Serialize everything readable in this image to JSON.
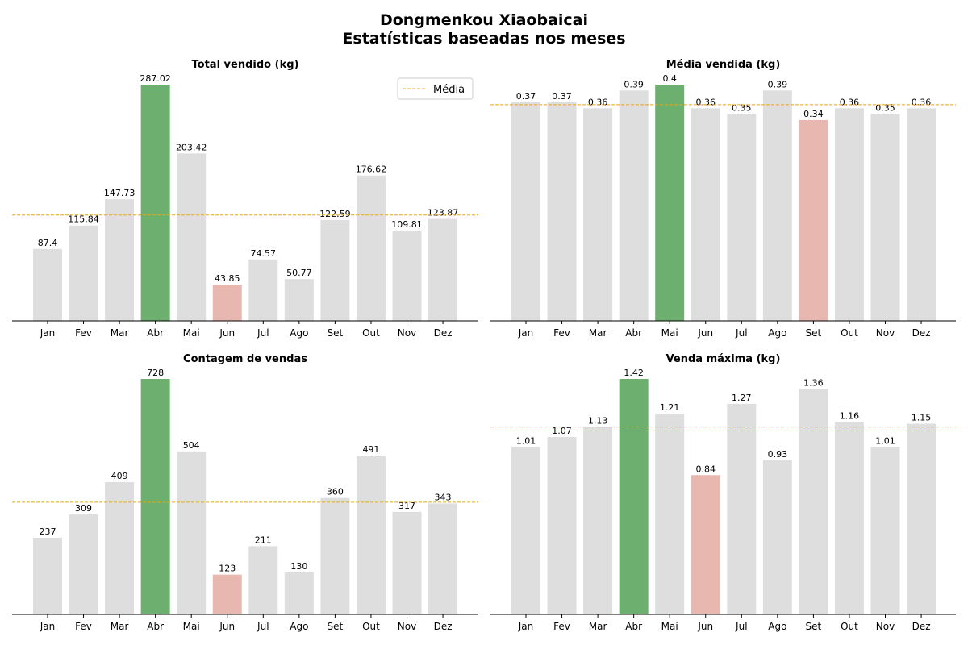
{
  "figure": {
    "title_line1": "Dongmenkou Xiaobaicai",
    "title_line2": "Estatísticas baseadas nos meses",
    "legend_label": "Média"
  },
  "colors": {
    "default_bar": "#dedede",
    "max_bar": "#6daf6e",
    "min_bar": "#e8b8b0",
    "mean_line": "#e6a817"
  },
  "chart_data": [
    {
      "type": "bar",
      "title": "Total vendido (kg)",
      "categories": [
        "Jan",
        "Fev",
        "Mar",
        "Abr",
        "Mai",
        "Jun",
        "Jul",
        "Ago",
        "Set",
        "Out",
        "Nov",
        "Dez"
      ],
      "values": [
        87.4,
        115.84,
        147.73,
        287.02,
        203.42,
        43.85,
        74.57,
        50.77,
        122.59,
        176.62,
        109.81,
        123.87
      ],
      "value_labels": [
        "87.4",
        "115.84",
        "147.73",
        "287.02",
        "203.42",
        "43.85",
        "74.57",
        "50.77",
        "122.59",
        "176.62",
        "109.81",
        "123.87"
      ],
      "mean": 128.6,
      "ylim": [
        0,
        287.02
      ],
      "legend": "top-right",
      "grid": false
    },
    {
      "type": "bar",
      "title": "Média vendida (kg)",
      "categories": [
        "Jan",
        "Fev",
        "Mar",
        "Abr",
        "Mai",
        "Jun",
        "Jul",
        "Ago",
        "Set",
        "Out",
        "Nov",
        "Dez"
      ],
      "values": [
        0.37,
        0.37,
        0.36,
        0.39,
        0.4,
        0.36,
        0.35,
        0.39,
        0.34,
        0.36,
        0.35,
        0.36
      ],
      "value_labels": [
        "0.37",
        "0.37",
        "0.36",
        "0.39",
        "0.4",
        "0.36",
        "0.35",
        "0.39",
        "0.34",
        "0.36",
        "0.35",
        "0.36"
      ],
      "mean": 0.366,
      "ylim": [
        0,
        0.4
      ],
      "grid": false
    },
    {
      "type": "bar",
      "title": "Contagem de vendas",
      "categories": [
        "Jan",
        "Fev",
        "Mar",
        "Abr",
        "Mai",
        "Jun",
        "Jul",
        "Ago",
        "Set",
        "Out",
        "Nov",
        "Dez"
      ],
      "values": [
        237,
        309,
        409,
        728,
        504,
        123,
        211,
        130,
        360,
        491,
        317,
        343
      ],
      "value_labels": [
        "237",
        "309",
        "409",
        "728",
        "504",
        "123",
        "211",
        "130",
        "360",
        "491",
        "317",
        "343"
      ],
      "mean": 347,
      "ylim": [
        0,
        728
      ],
      "grid": false
    },
    {
      "type": "bar",
      "title": "Venda máxima (kg)",
      "categories": [
        "Jan",
        "Fev",
        "Mar",
        "Abr",
        "Mai",
        "Jun",
        "Jul",
        "Ago",
        "Set",
        "Out",
        "Nov",
        "Dez"
      ],
      "values": [
        1.01,
        1.07,
        1.13,
        1.42,
        1.21,
        0.84,
        1.27,
        0.93,
        1.36,
        1.16,
        1.01,
        1.15
      ],
      "value_labels": [
        "1.01",
        "1.07",
        "1.13",
        "1.42",
        "1.21",
        "0.84",
        "1.27",
        "0.93",
        "1.36",
        "1.16",
        "1.01",
        "1.15"
      ],
      "mean": 1.13,
      "ylim": [
        0,
        1.42
      ],
      "grid": false
    }
  ]
}
